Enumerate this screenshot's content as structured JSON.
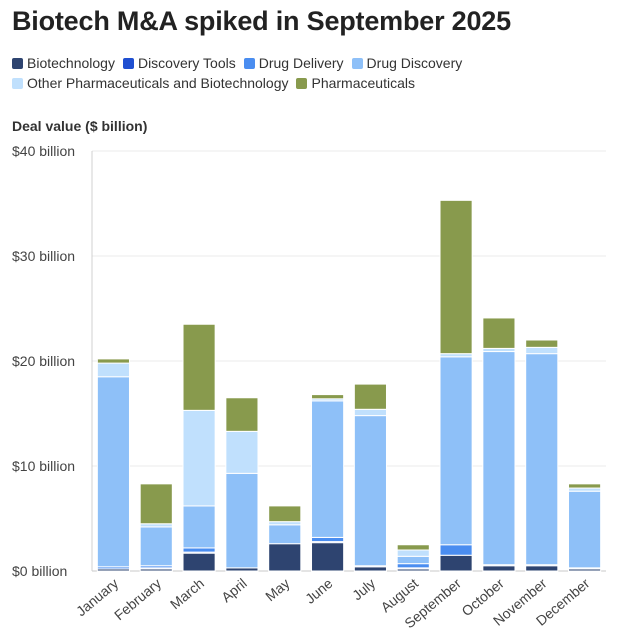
{
  "chart_data": {
    "type": "bar",
    "stacked": true,
    "title": "Biotech M&A spiked in September 2025",
    "ylabel": "Deal value ($ billion)",
    "xlabel": "",
    "ylim": [
      0,
      40
    ],
    "yticks": [
      0,
      10,
      20,
      30,
      40
    ],
    "ytick_labels": [
      "$0 billion",
      "$10 billion",
      "$20 billion",
      "$30 billion",
      "$40 billion"
    ],
    "categories": [
      "January",
      "February",
      "March",
      "April",
      "May",
      "June",
      "July",
      "August",
      "September",
      "October",
      "November",
      "December"
    ],
    "series": [
      {
        "name": "Biotechnology",
        "color": "#2e4470",
        "values": [
          0.2,
          0.2,
          1.7,
          0.3,
          2.6,
          2.7,
          0.4,
          0.2,
          1.5,
          0.5,
          0.5,
          0.2
        ]
      },
      {
        "name": "Discovery Tools",
        "color": "#1f4fd1",
        "values": [
          0.0,
          0.1,
          0.1,
          0.0,
          0.0,
          0.1,
          0.0,
          0.1,
          0.0,
          0.0,
          0.0,
          0.0
        ]
      },
      {
        "name": "Drug Delivery",
        "color": "#4a8df0",
        "values": [
          0.2,
          0.2,
          0.4,
          0.0,
          0.0,
          0.4,
          0.1,
          0.4,
          1.0,
          0.1,
          0.1,
          0.1
        ]
      },
      {
        "name": "Drug Discovery",
        "color": "#8ec0f8",
        "values": [
          18.1,
          3.7,
          4.0,
          9.0,
          1.8,
          13.0,
          14.3,
          0.7,
          17.9,
          20.3,
          20.1,
          7.3
        ]
      },
      {
        "name": "Other Pharmaceuticals and Biotechnology",
        "color": "#c0e0fd",
        "values": [
          1.3,
          0.3,
          9.1,
          4.0,
          0.3,
          0.2,
          0.6,
          0.6,
          0.3,
          0.3,
          0.6,
          0.3
        ]
      },
      {
        "name": "Pharmaceuticals",
        "color": "#889a4d",
        "values": [
          0.4,
          3.8,
          8.2,
          3.2,
          1.5,
          0.4,
          2.4,
          0.5,
          14.6,
          2.9,
          0.7,
          0.4
        ]
      }
    ]
  }
}
